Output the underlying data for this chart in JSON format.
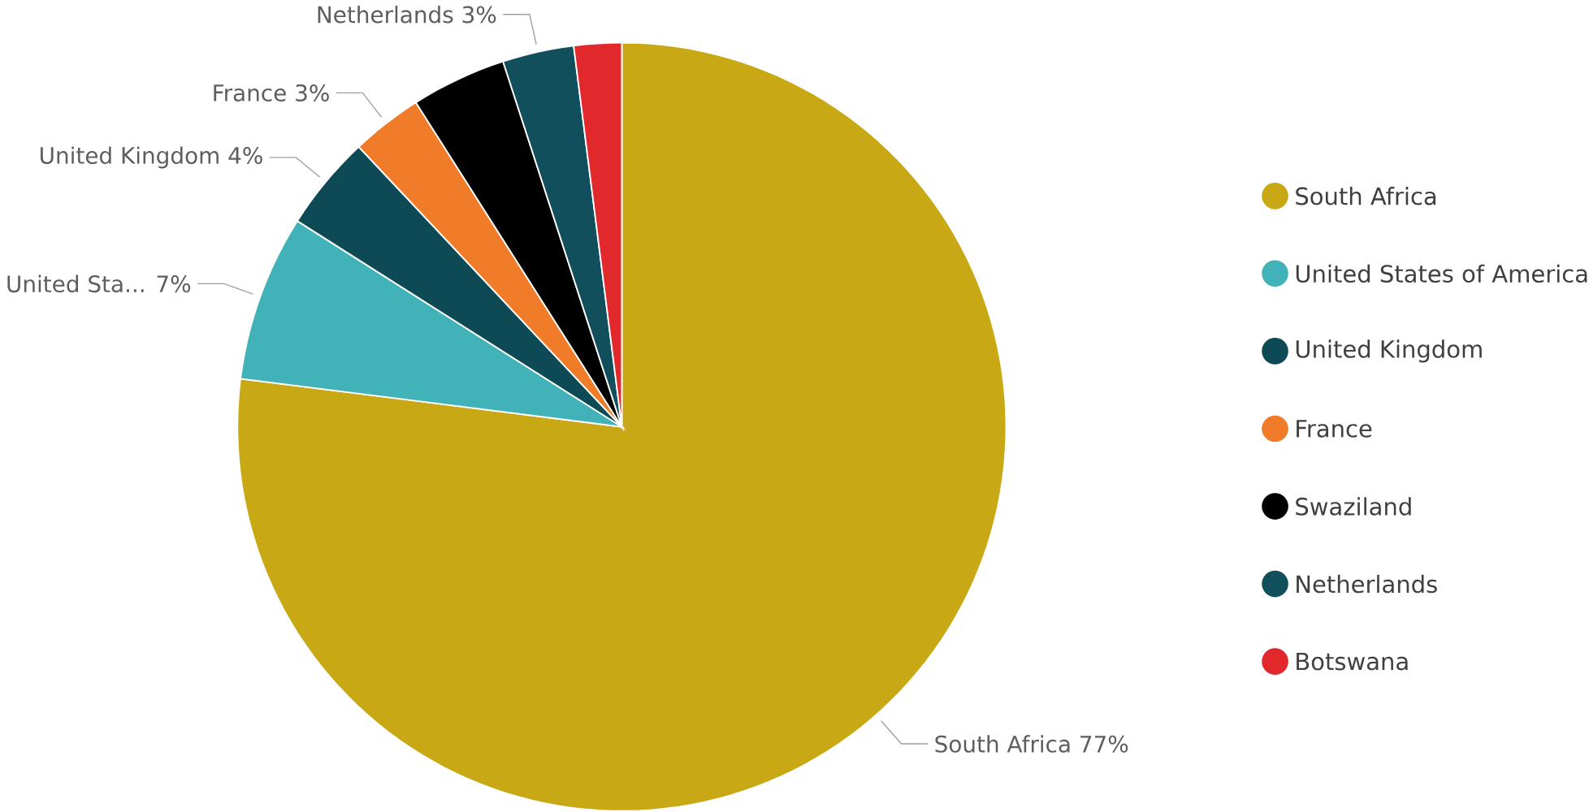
{
  "chart_data": {
    "type": "pie",
    "categories": [
      "South Africa",
      "United States of America",
      "United Kingdom",
      "France",
      "Swaziland",
      "Netherlands",
      "Botswana"
    ],
    "values": [
      77,
      7,
      4,
      3,
      4,
      3,
      2
    ],
    "colors": [
      "#c8a915",
      "#41b3b8",
      "#0e4a55",
      "#f07c29",
      "#000000",
      "#124f5c",
      "#e0282d"
    ],
    "value_labels": [
      "South Africa 77%",
      "United Sta... 7%",
      "United Kingdom 4%",
      "France 3%",
      null,
      "Netherlands 3%",
      null
    ],
    "legend": "right"
  }
}
